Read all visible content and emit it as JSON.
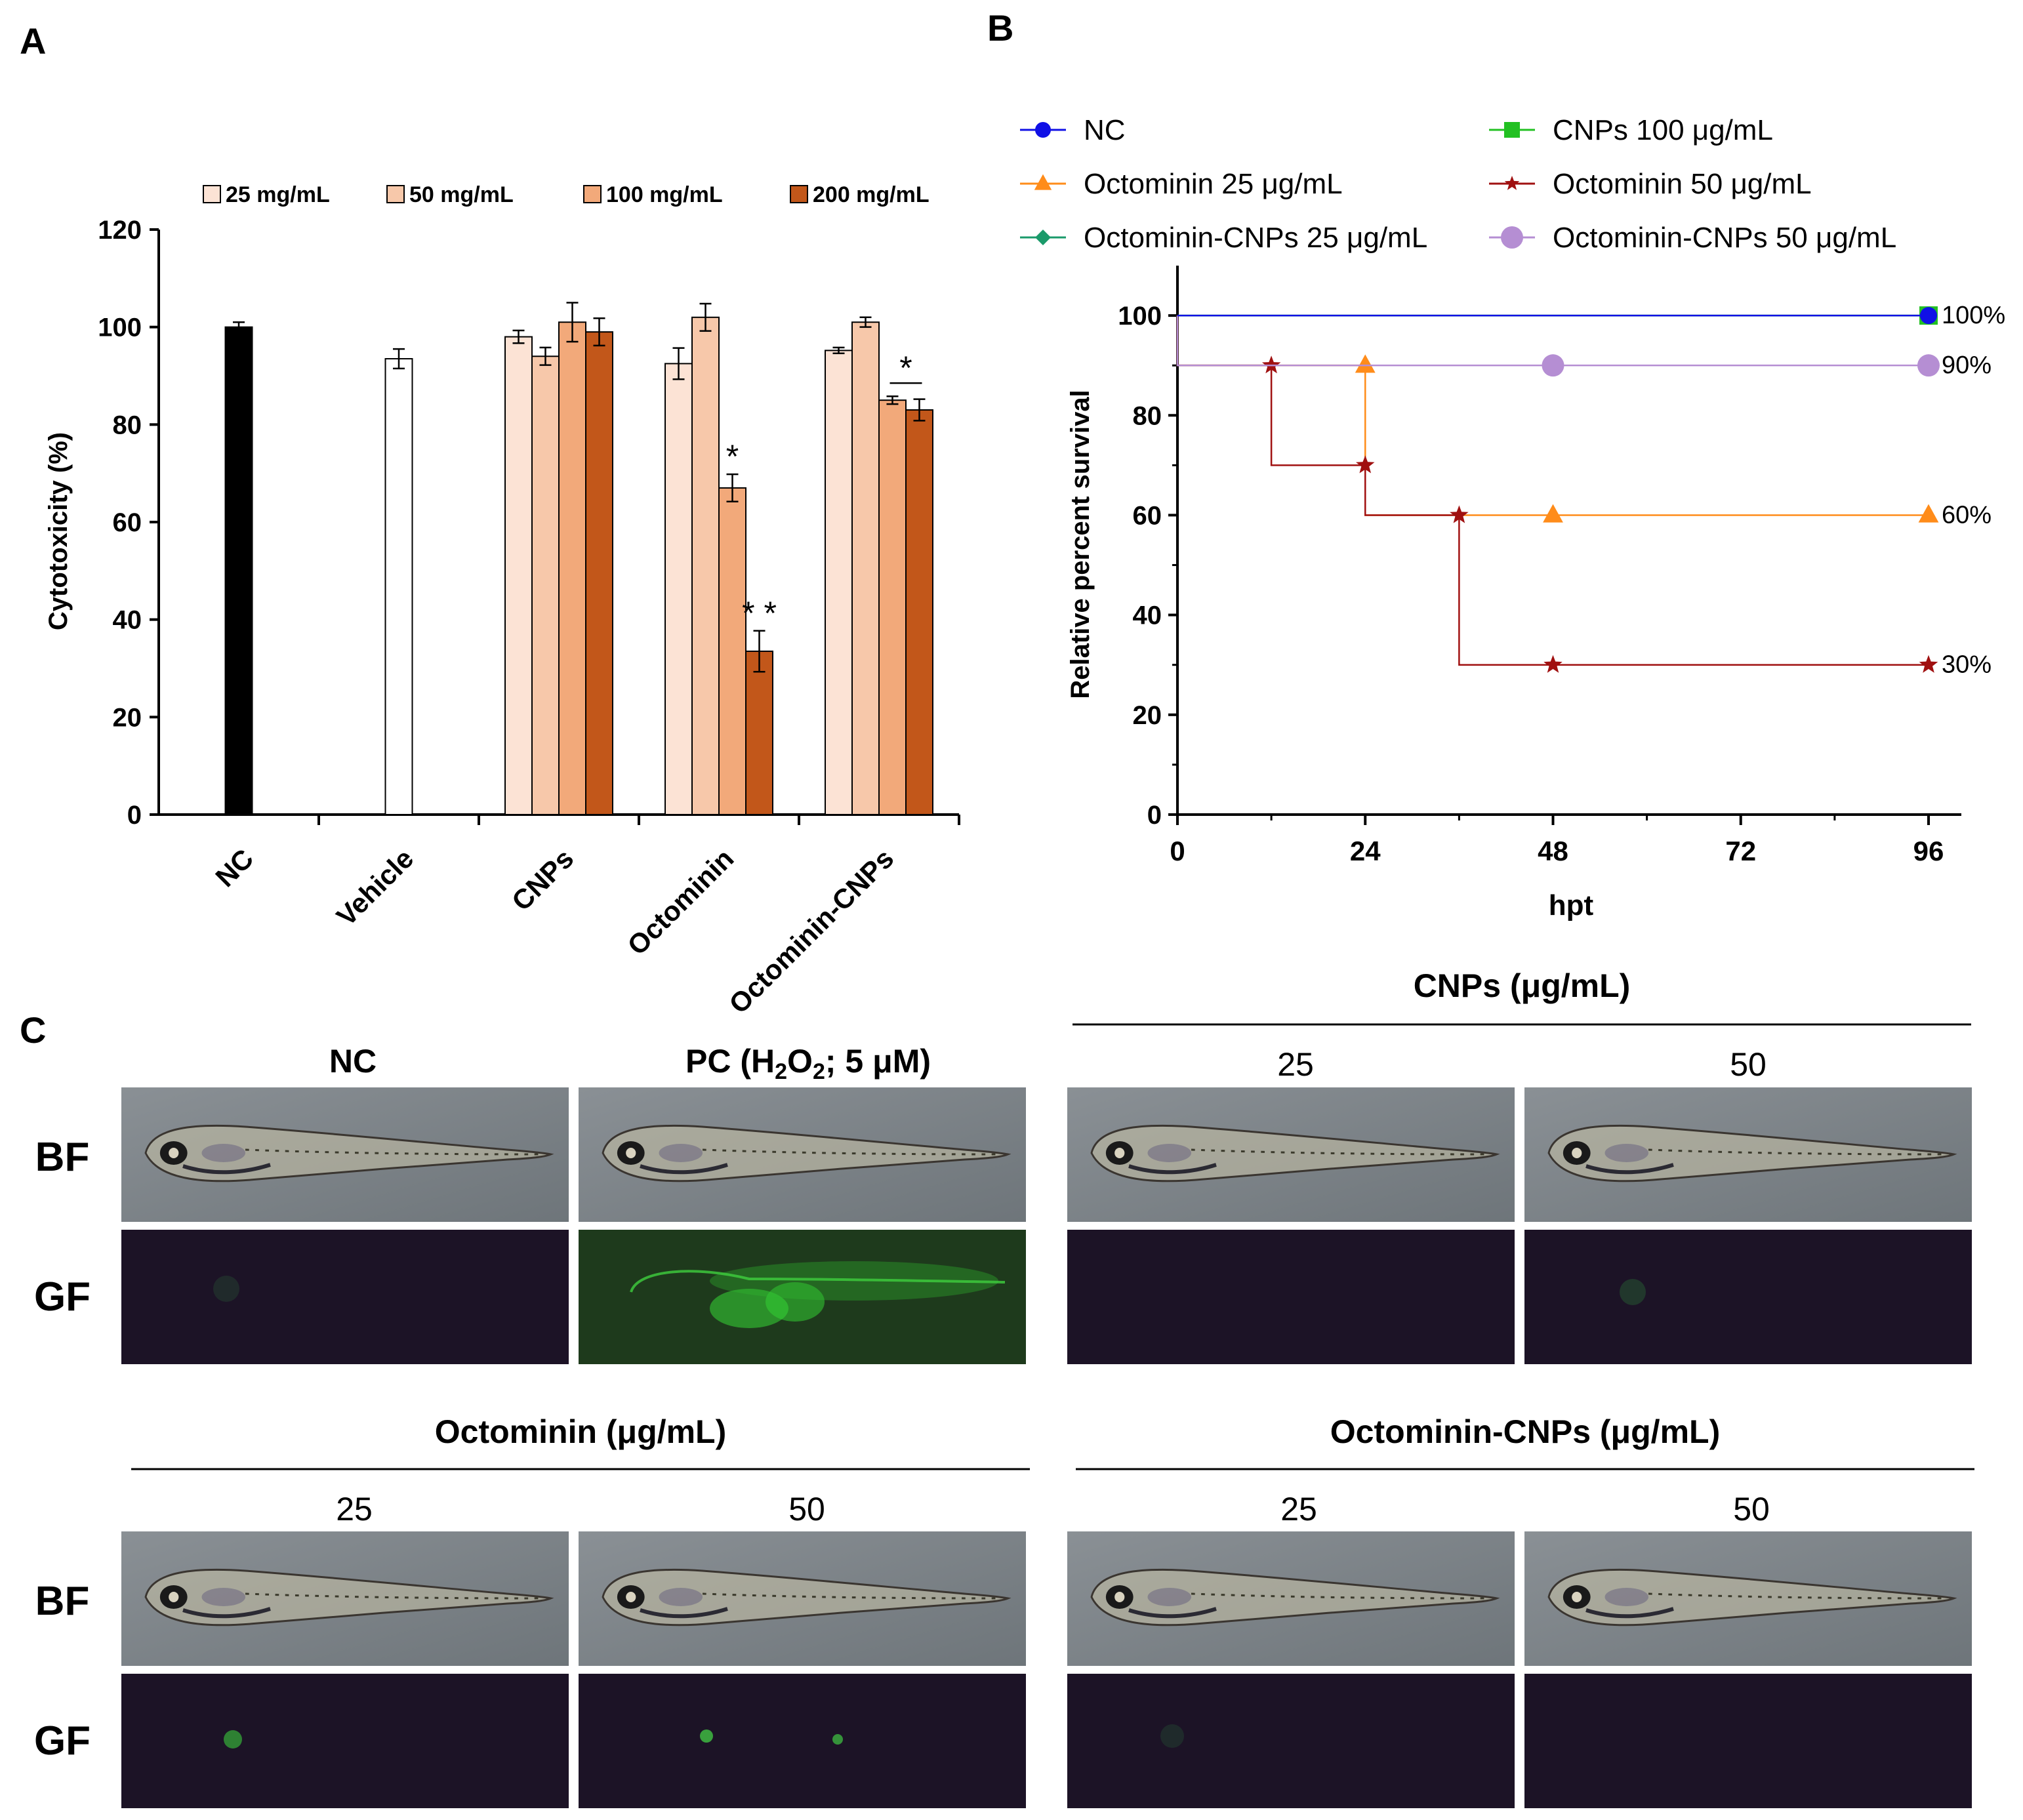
{
  "panel_labels": {
    "a": "A",
    "b": "B",
    "c": "C"
  },
  "chart_data": [
    {
      "type": "bar",
      "panel": "A",
      "ylabel": "Cytotoxicity (%)",
      "xlabel": "",
      "ylim": [
        0,
        120
      ],
      "yticks": [
        0,
        20,
        40,
        60,
        80,
        100,
        120
      ],
      "legend_position": "top",
      "legend": [
        {
          "label": "25 mg/mL",
          "color": "#fce3d5"
        },
        {
          "label": "50 mg/mL",
          "color": "#f7c8aa"
        },
        {
          "label": "100 mg/mL",
          "color": "#f2a97a"
        },
        {
          "label": "200 mg/mL",
          "color": "#c2571a"
        }
      ],
      "categories": [
        "NC",
        "Vehicle",
        "CNPs",
        "Octominin",
        "Octominin-CNPs"
      ],
      "bars": [
        {
          "category": "NC",
          "slot": 0,
          "value": 100,
          "error": 1,
          "color": "#000000"
        },
        {
          "category": "Vehicle",
          "slot": 0,
          "value": 93.5,
          "error": 2,
          "color": "#ffffff"
        },
        {
          "category": "CNPs",
          "slot": 0,
          "value": 98,
          "error": 1.3,
          "color": "#fce3d5"
        },
        {
          "category": "CNPs",
          "slot": 1,
          "value": 94,
          "error": 1.8,
          "color": "#f7c8aa"
        },
        {
          "category": "CNPs",
          "slot": 2,
          "value": 101,
          "error": 4,
          "color": "#f2a97a"
        },
        {
          "category": "CNPs",
          "slot": 3,
          "value": 99,
          "error": 2.8,
          "color": "#c2571a"
        },
        {
          "category": "Octominin",
          "slot": 0,
          "value": 92.5,
          "error": 3.2,
          "color": "#fce3d5"
        },
        {
          "category": "Octominin",
          "slot": 1,
          "value": 102,
          "error": 2.8,
          "color": "#f7c8aa"
        },
        {
          "category": "Octominin",
          "slot": 2,
          "value": 67,
          "error": 2.8,
          "color": "#f2a97a",
          "annotation": "*"
        },
        {
          "category": "Octominin",
          "slot": 3,
          "value": 33.5,
          "error": 4.2,
          "color": "#c2571a",
          "annotation": "**"
        },
        {
          "category": "Octominin-CNPs",
          "slot": 0,
          "value": 95.2,
          "error": 0.6,
          "color": "#fce3d5"
        },
        {
          "category": "Octominin-CNPs",
          "slot": 1,
          "value": 101,
          "error": 1,
          "color": "#f7c8aa"
        },
        {
          "category": "Octominin-CNPs",
          "slot": 2,
          "value": 85,
          "error": 0.8,
          "color": "#f2a97a"
        },
        {
          "category": "Octominin-CNPs",
          "slot": 3,
          "value": 83,
          "error": 2.2,
          "color": "#c2571a"
        }
      ],
      "bracket": {
        "category": "Octominin-CNPs",
        "from_slot": 2,
        "to_slot": 3,
        "label": "*"
      }
    },
    {
      "type": "line",
      "panel": "B",
      "xlabel": "hpt",
      "ylabel": "Relative percent survival",
      "xlim": [
        0,
        96
      ],
      "ylim": [
        0,
        110
      ],
      "xticks": [
        0,
        24,
        48,
        72,
        96
      ],
      "yticks": [
        0,
        20,
        40,
        60,
        80,
        100
      ],
      "legend_position": "top",
      "series": [
        {
          "name": "NC",
          "color": "#1010e6",
          "marker": "circle",
          "x": [
            0,
            96
          ],
          "y": [
            100,
            100
          ],
          "end_label": "100%",
          "end_value": 100
        },
        {
          "name": "CNPs 100 μg/mL",
          "color": "#22c022",
          "marker": "square",
          "x": [
            0,
            96
          ],
          "y": [
            100,
            100
          ]
        },
        {
          "name": "Octominin 25 μg/mL",
          "color": "#ff8c1a",
          "marker": "triangle",
          "x": [
            0,
            24,
            48,
            96
          ],
          "y": [
            100,
            90,
            60,
            60
          ],
          "end_label": "60%",
          "end_value": 60
        },
        {
          "name": "Octominin 50 μg/mL",
          "color": "#a01010",
          "marker": "star",
          "x": [
            0,
            12,
            24,
            36,
            48,
            96
          ],
          "y": [
            100,
            90,
            70,
            60,
            30,
            30
          ],
          "end_label": "30%",
          "end_value": 30
        },
        {
          "name": "Octominin-CNPs 25 μg/mL",
          "color": "#1a9a6a",
          "marker": "diamond",
          "x": [
            0,
            96
          ],
          "y": [
            100,
            100
          ]
        },
        {
          "name": "Octominin-CNPs 50 μg/mL",
          "color": "#b58ed3",
          "marker": "circle",
          "x": [
            0,
            48,
            96
          ],
          "y": [
            100,
            90,
            90
          ],
          "end_label": "90%",
          "end_value": 90
        }
      ]
    }
  ],
  "panel_c": {
    "row_labels": {
      "bf": "BF",
      "gf": "GF"
    },
    "top": {
      "nc_title": "NC",
      "pc_title_prefix": "PC (H",
      "pc_sub_1": "2",
      "pc_mid": "O",
      "pc_sub_2": "2",
      "pc_title_suffix": "; 5 μM)",
      "cnps_group": "CNPs (μg/mL)",
      "cnps_dose_1": "25",
      "cnps_dose_2": "50"
    },
    "bottom": {
      "octo_group": "Octominin (μg/mL)",
      "octo_dose_1": "25",
      "octo_dose_2": "50",
      "octocnps_group": "Octominin-CNPs (μg/mL)",
      "octocnps_dose_1": "25",
      "octocnps_dose_2": "50"
    }
  }
}
